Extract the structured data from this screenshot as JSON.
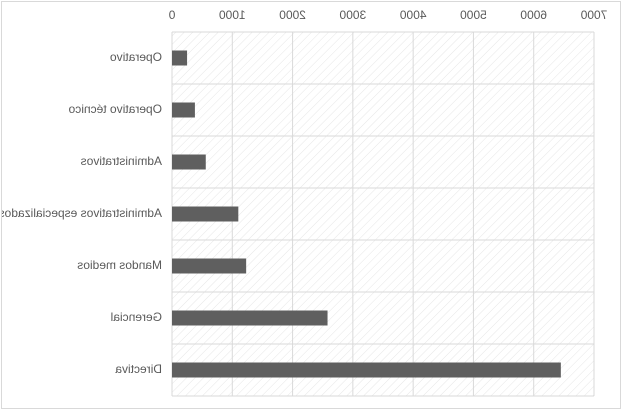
{
  "chart_data": {
    "type": "bar",
    "orientation": "horizontal",
    "mirrored": true,
    "categories": [
      "Operativo",
      "Operativo técnico",
      "Administrativos",
      "Administrativos especializados",
      "Mandos medios",
      "Gerencial",
      "Directiva"
    ],
    "values": [
      250,
      380,
      560,
      1100,
      1230,
      2580,
      6450
    ],
    "xticks": [
      "0",
      "1000",
      "2000",
      "3000",
      "4000",
      "5000",
      "6000",
      "7000"
    ],
    "xlim": [
      0,
      7000
    ],
    "title": "",
    "xlabel": "",
    "ylabel": "",
    "grid": true,
    "colors": {
      "bar": "#5f5f5f",
      "gridline": "#d9d9d9",
      "plot_hatch": "#e6e6e6",
      "text": "#595959"
    }
  }
}
